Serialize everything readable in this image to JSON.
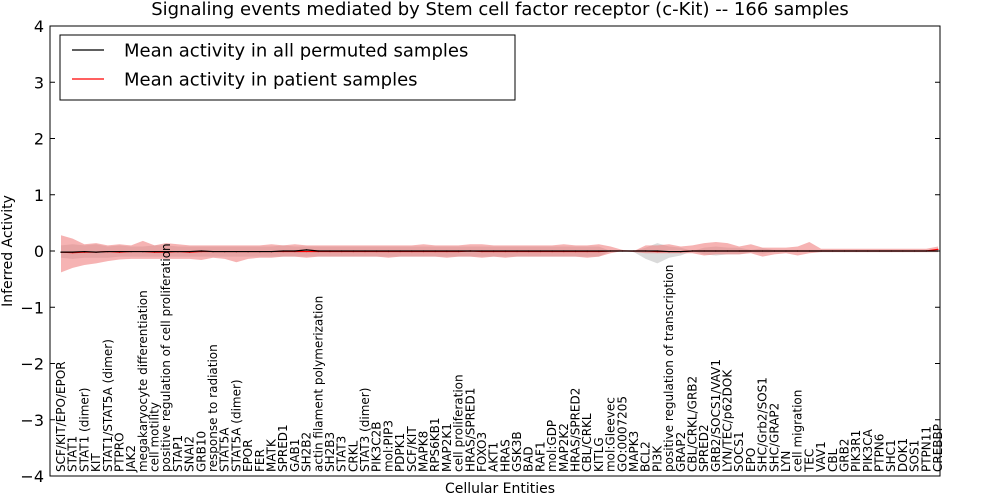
{
  "chart_data": {
    "type": "line",
    "title": "Signaling events mediated by Stem cell factor receptor (c-Kit) -- 166 samples",
    "xlabel": "Cellular Entities",
    "ylabel": "Inferred Activity",
    "ylim": [
      -4,
      4
    ],
    "yticks": [
      4,
      3,
      2,
      1,
      0,
      -1,
      -2,
      -3,
      -4
    ],
    "grid": false,
    "legend": {
      "placement": "top-left",
      "entries": [
        {
          "label": "Mean activity in all permuted samples",
          "color": "#000000"
        },
        {
          "label": "Mean activity in patient samples",
          "color": "#ff0000"
        }
      ]
    },
    "categories": [
      "SCF/KIT/EPO/EPOR",
      "STAT1",
      "STAT1 (dimer)",
      "KIT",
      "STAT1/STAT5A (dimer)",
      "PTPRO",
      "JAK2",
      "megakaryocyte differentiation",
      "cell motility",
      "positive regulation of cell proliferation",
      "STAP1",
      "SNAI2",
      "GRB10",
      "response to radiation",
      "STAT5A",
      "STAT5A (dimer)",
      "EPOR",
      "FER",
      "MATK",
      "SPRED1",
      "GAB1",
      "SH2B2",
      "actin filament polymerization",
      "SH2B3",
      "STAT3",
      "CRKL",
      "STAT3 (dimer)",
      "PIK3C2B",
      "mol:PIP3",
      "PDPK1",
      "SCF/KIT",
      "MAPK8",
      "RPS6KB1",
      "MAP2K1",
      "cell proliferation",
      "HRAS/SPRED1",
      "FOXO3",
      "AKT1",
      "HRAS",
      "GSK3B",
      "BAD",
      "RAF1",
      "mol:GDP",
      "MAP2K2",
      "HRAS/SPRED2",
      "CBL/CRKL",
      "KITLG",
      "mol:Gleevec",
      "GO:0007205",
      "MAPK3",
      "BCL2",
      "PI3K",
      "positive regulation of transcription",
      "GRAP2",
      "CBL/CRKL/GRB2",
      "SPRED2",
      "GRB2/SOCS1/VAV1",
      "LYN/TEC/p62DOK",
      "SOCS1",
      "EPO",
      "SHC/Grb2/SOS1",
      "SHC/GRAP2",
      "LYN",
      "cell migration",
      "TEC",
      "VAV1",
      "CBL",
      "GRB2",
      "PIK3R1",
      "PIK3CA",
      "PTPN6",
      "SHC1",
      "DOK1",
      "SOS1",
      "PTPN11",
      "CREBBP"
    ],
    "series": [
      {
        "name": "Mean activity in all permuted samples",
        "color": "#000000",
        "values": [
          -0.02,
          -0.02,
          -0.01,
          -0.02,
          -0.01,
          -0.01,
          -0.01,
          -0.01,
          -0.01,
          -0.01,
          -0.01,
          -0.01,
          0.0,
          -0.01,
          -0.01,
          -0.01,
          -0.01,
          -0.01,
          -0.01,
          0.0,
          0.0,
          0.02,
          0.0,
          0.0,
          0.0,
          0.0,
          0.0,
          0.0,
          0.0,
          0.0,
          0.0,
          0.0,
          0.0,
          0.0,
          0.0,
          0.0,
          0.0,
          0.0,
          0.0,
          0.0,
          0.0,
          0.0,
          0.0,
          0.0,
          0.0,
          0.0,
          0.0,
          0.0,
          0.0,
          0.0,
          0.0,
          0.0,
          -0.01,
          -0.01,
          0.0,
          0.0,
          0.0,
          0.0,
          0.0,
          0.0,
          0.0,
          0.0,
          0.0,
          0.0,
          0.0,
          0.0,
          0.0,
          0.0,
          0.0,
          0.0,
          0.0,
          0.0,
          0.0,
          0.0,
          0.0,
          0.0
        ],
        "upper": [
          0.1,
          0.12,
          0.1,
          0.12,
          0.08,
          0.1,
          0.08,
          0.08,
          0.1,
          0.1,
          0.08,
          0.08,
          0.08,
          0.08,
          0.08,
          0.08,
          0.08,
          0.08,
          0.08,
          0.1,
          0.08,
          0.08,
          0.08,
          0.08,
          0.08,
          0.08,
          0.08,
          0.08,
          0.08,
          0.08,
          0.08,
          0.08,
          0.08,
          0.08,
          0.08,
          0.08,
          0.08,
          0.08,
          0.08,
          0.08,
          0.08,
          0.08,
          0.08,
          0.08,
          0.08,
          0.08,
          0.08,
          0.0,
          0.0,
          0.0,
          0.06,
          0.14,
          0.08,
          0.06,
          0.0,
          0.06,
          0.08,
          0.06,
          0.06,
          0.02,
          0.05,
          0.02,
          0.02,
          0.02,
          0.02,
          0.02,
          0.02,
          0.02,
          0.02,
          0.02,
          0.02,
          0.02,
          0.02,
          0.02,
          0.02,
          0.02
        ],
        "lower": [
          -0.12,
          -0.14,
          -0.12,
          -0.12,
          -0.12,
          -0.1,
          -0.1,
          -0.1,
          -0.1,
          -0.1,
          -0.1,
          -0.1,
          -0.1,
          -0.1,
          -0.1,
          -0.1,
          -0.1,
          -0.1,
          -0.1,
          -0.1,
          -0.1,
          -0.1,
          -0.1,
          -0.1,
          -0.1,
          -0.1,
          -0.1,
          -0.1,
          -0.1,
          -0.1,
          -0.1,
          -0.1,
          -0.1,
          -0.1,
          -0.1,
          -0.1,
          -0.1,
          -0.1,
          -0.1,
          -0.1,
          -0.1,
          -0.1,
          -0.1,
          -0.1,
          -0.1,
          -0.1,
          -0.1,
          0.0,
          0.0,
          -0.02,
          -0.14,
          -0.22,
          -0.12,
          -0.08,
          0.0,
          -0.06,
          -0.08,
          -0.06,
          -0.06,
          -0.02,
          -0.05,
          -0.02,
          -0.02,
          -0.02,
          -0.02,
          -0.02,
          -0.02,
          -0.02,
          -0.02,
          -0.02,
          -0.02,
          -0.02,
          -0.02,
          -0.02,
          -0.02,
          -0.02
        ]
      },
      {
        "name": "Mean activity in patient samples",
        "color": "#ff0000",
        "values": [
          -0.02,
          -0.03,
          -0.02,
          -0.02,
          -0.01,
          -0.02,
          -0.01,
          -0.01,
          -0.02,
          -0.02,
          -0.01,
          -0.02,
          -0.01,
          -0.01,
          -0.01,
          -0.01,
          -0.01,
          -0.01,
          -0.01,
          -0.01,
          -0.01,
          -0.01,
          -0.01,
          -0.01,
          -0.01,
          -0.01,
          -0.01,
          -0.01,
          -0.01,
          -0.01,
          -0.01,
          -0.01,
          -0.01,
          -0.01,
          -0.01,
          0.0,
          -0.01,
          -0.01,
          -0.01,
          -0.01,
          -0.01,
          -0.01,
          -0.01,
          -0.01,
          -0.01,
          -0.01,
          -0.01,
          0.0,
          0.0,
          0.0,
          0.0,
          -0.01,
          -0.01,
          -0.01,
          0.0,
          0.0,
          0.0,
          0.0,
          0.0,
          0.0,
          0.0,
          0.0,
          0.0,
          0.0,
          0.0,
          0.0,
          0.0,
          0.0,
          0.0,
          0.0,
          0.0,
          0.0,
          0.0,
          0.0,
          0.0,
          0.03
        ],
        "upper": [
          0.28,
          0.22,
          0.12,
          0.14,
          0.1,
          0.12,
          0.1,
          0.18,
          0.1,
          0.14,
          0.12,
          0.1,
          0.1,
          0.1,
          0.1,
          0.1,
          0.1,
          0.1,
          0.12,
          0.1,
          0.12,
          0.1,
          0.1,
          0.1,
          0.1,
          0.1,
          0.1,
          0.1,
          0.1,
          0.1,
          0.1,
          0.12,
          0.1,
          0.1,
          0.1,
          0.12,
          0.12,
          0.1,
          0.1,
          0.1,
          0.1,
          0.1,
          0.1,
          0.12,
          0.1,
          0.1,
          0.12,
          0.08,
          0.02,
          0.0,
          0.1,
          0.1,
          0.12,
          0.08,
          0.1,
          0.14,
          0.16,
          0.14,
          0.08,
          0.12,
          0.06,
          0.06,
          0.06,
          0.08,
          0.16,
          0.04,
          0.04,
          0.04,
          0.04,
          0.04,
          0.04,
          0.04,
          0.04,
          0.04,
          0.04,
          0.08
        ],
        "lower": [
          -0.38,
          -0.3,
          -0.25,
          -0.22,
          -0.18,
          -0.15,
          -0.14,
          -0.14,
          -0.14,
          -0.14,
          -0.14,
          -0.14,
          -0.16,
          -0.12,
          -0.14,
          -0.2,
          -0.14,
          -0.12,
          -0.12,
          -0.1,
          -0.1,
          -0.12,
          -0.1,
          -0.1,
          -0.1,
          -0.1,
          -0.1,
          -0.1,
          -0.12,
          -0.1,
          -0.1,
          -0.1,
          -0.1,
          -0.12,
          -0.1,
          -0.1,
          -0.12,
          -0.1,
          -0.12,
          -0.1,
          -0.1,
          -0.1,
          -0.1,
          -0.1,
          -0.1,
          -0.12,
          -0.1,
          -0.04,
          0.0,
          -0.02,
          -0.04,
          -0.04,
          -0.04,
          -0.04,
          -0.04,
          -0.08,
          -0.06,
          -0.06,
          -0.06,
          -0.04,
          -0.1,
          -0.06,
          -0.04,
          -0.08,
          -0.04,
          -0.02,
          -0.02,
          -0.02,
          -0.02,
          -0.02,
          -0.02,
          -0.02,
          -0.02,
          -0.02,
          -0.02,
          -0.02
        ]
      }
    ]
  }
}
